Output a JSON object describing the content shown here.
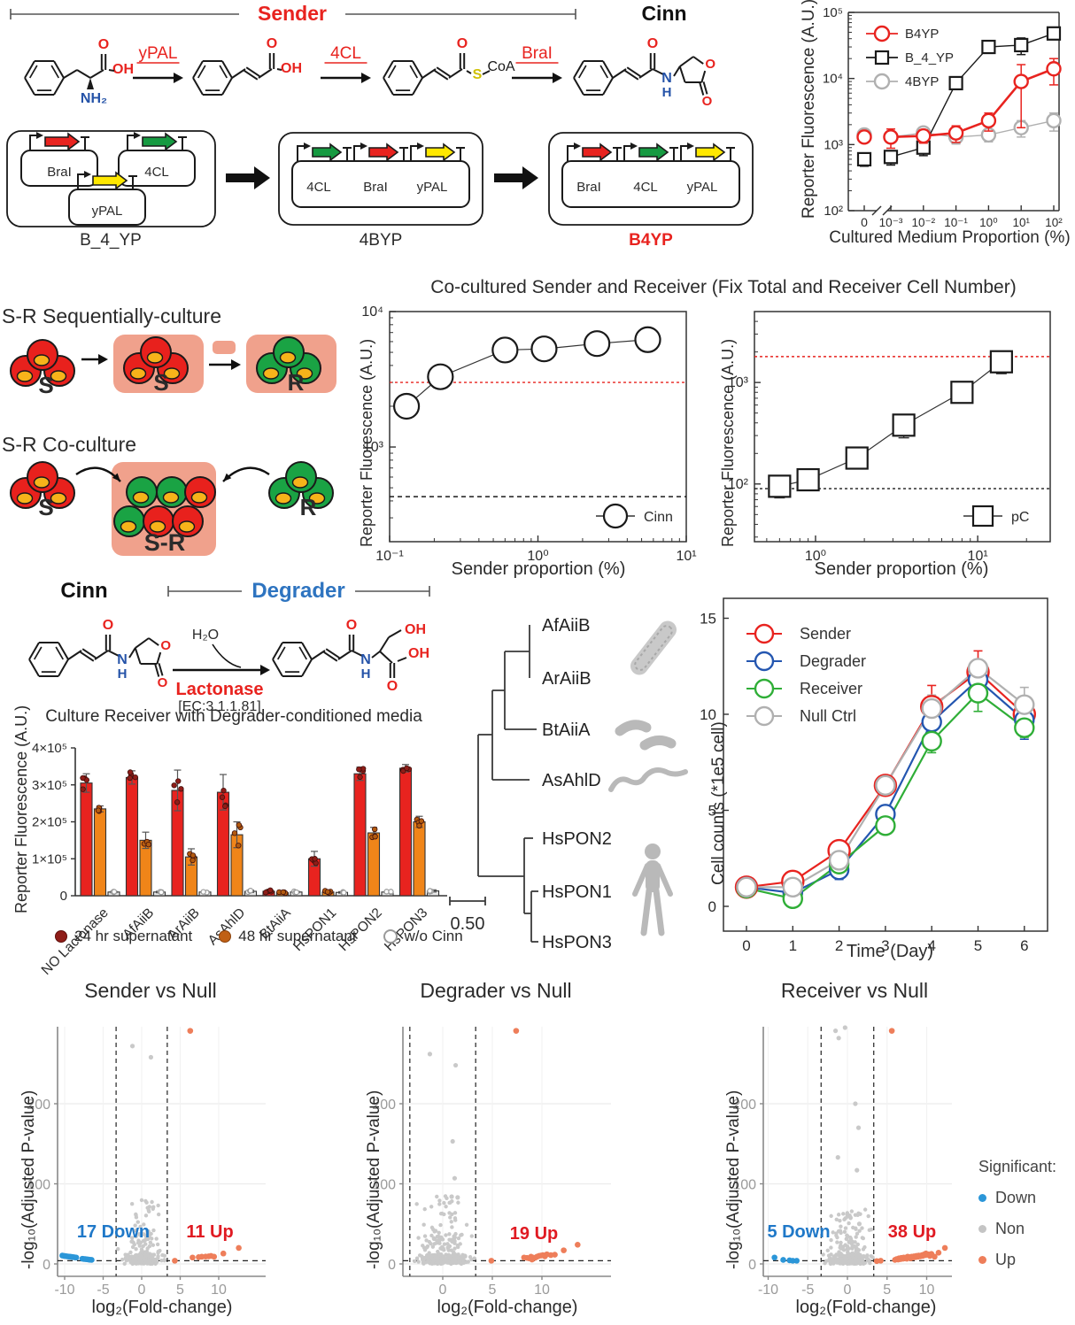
{
  "top_pathway": {
    "sender": "Sender",
    "cinn": "Cinn",
    "enzymes": [
      "yPAL",
      "4CL",
      "BraI"
    ],
    "atoms": {
      "o": "O",
      "oh": "OH",
      "nh2": "NH₂",
      "s": "S",
      "coa": "CoA",
      "n": "N",
      "h": "H"
    }
  },
  "plasmids": {
    "constructs": [
      {
        "name": "B_4_YP",
        "name_color": "#1a1a1a",
        "genes": [
          "BraI",
          "4CL",
          "yPAL"
        ],
        "gene_colors": [
          "#e8231f",
          "#169a41",
          "#ffe800"
        ],
        "layout": "separate"
      },
      {
        "name": "4BYP",
        "name_color": "#1a1a1a",
        "genes": [
          "4CL",
          "BraI",
          "yPAL"
        ],
        "gene_colors": [
          "#169a41",
          "#e8231f",
          "#ffe800"
        ],
        "layout": "operon"
      },
      {
        "name": "B4YP",
        "name_color": "#e8231f",
        "genes": [
          "BraI",
          "4CL",
          "yPAL"
        ],
        "gene_colors": [
          "#e8231f",
          "#169a41",
          "#ffe800"
        ],
        "layout": "operon"
      }
    ]
  },
  "cocultured_title": "Co-cultured Sender and Receiver (Fix Total and Receiver Cell Number)",
  "sr_diagrams": {
    "seq_title": "S-R Sequentially-culture",
    "co_title": "S-R Co-culture",
    "s_label": "S",
    "r_label": "R",
    "sr_label": "S-R",
    "cell_red": "#e8211d",
    "cell_green": "#1aa344",
    "nucleus": "#f7b31a",
    "box_pink": "#f0a18c"
  },
  "degrader_chem": {
    "cinn": "Cinn",
    "degrader": "Degrader",
    "degrader_color": "#2e74c0",
    "h2o": "H₂O",
    "lactonase": "Lactonase",
    "ec": "[EC:3.1.1.81]"
  },
  "tree": {
    "taxa": [
      "AfAiiB",
      "ArAiiB",
      "BtAiiA",
      "AsAhlD",
      "HsPON2",
      "HsPON1",
      "HsPON3"
    ],
    "scale_label": "0.50",
    "icons": [
      "rod-bacterium",
      "curved-bacteria",
      "nematode-worm",
      "human-silhouette"
    ]
  },
  "volcano_legend": {
    "title": "Significant:",
    "items": [
      {
        "label": "Down",
        "color": "#2b96d8"
      },
      {
        "label": "Non",
        "color": "#c4c4c4"
      },
      {
        "label": "Up",
        "color": "#ee7e5a"
      }
    ]
  },
  "chart_data": [
    {
      "id": "medium",
      "type": "scatter",
      "xlabel": "Cultured Medium Proportion (%)",
      "ylabel": "Reporter Fluorescence (A.U.)",
      "ylim": [
        100,
        100000
      ],
      "yticks": [
        [
          100,
          "10²"
        ],
        [
          1000,
          "10³"
        ],
        [
          10000,
          "10⁴"
        ],
        [
          100000,
          "10⁵"
        ]
      ],
      "zero_label": "0",
      "xticks_log": [
        [
          0.001,
          "10⁻³"
        ],
        [
          0.01,
          "10⁻²"
        ],
        [
          0.1,
          "10⁻¹"
        ],
        [
          1,
          "10⁰"
        ],
        [
          10,
          "10¹"
        ],
        [
          100,
          "10²"
        ]
      ],
      "series": [
        {
          "name": "4BYP",
          "color": "#b0b0b0",
          "marker": "circle",
          "x": [
            0,
            0.001,
            0.01,
            0.1,
            1,
            10,
            100
          ],
          "y": [
            1400,
            1300,
            1500,
            1300,
            1400,
            1800,
            2300
          ],
          "err": [
            150,
            150,
            250,
            280,
            300,
            500,
            700
          ]
        },
        {
          "name": "B_4_YP",
          "color": "#1a1a1a",
          "marker": "square",
          "x": [
            0,
            0.001,
            0.01,
            0.1,
            1,
            10,
            100
          ],
          "y": [
            600,
            650,
            900,
            8500,
            30000,
            32000,
            48000
          ],
          "err": [
            130,
            160,
            220,
            1500,
            6000,
            9000,
            6000
          ]
        },
        {
          "name": "B4YP",
          "color": "#e8231f",
          "marker": "circle",
          "x": [
            0,
            0.001,
            0.01,
            0.1,
            1,
            10,
            100
          ],
          "y": [
            1300,
            1300,
            1350,
            1500,
            2300,
            9000,
            14000
          ],
          "err": [
            150,
            420,
            300,
            420,
            700,
            7200,
            6000
          ]
        }
      ],
      "legend_order": [
        "B4YP",
        "B_4_YP",
        "4BYP"
      ]
    },
    {
      "id": "cinn",
      "type": "scatter",
      "xlabel": "Sender proportion (%)",
      "ylabel": "Reporter Fluorescence (A.U.)",
      "xlim": [
        0.1,
        10
      ],
      "ylim": [
        200,
        10000
      ],
      "xticks": [
        [
          0.1,
          "10⁻¹"
        ],
        [
          1,
          "10⁰"
        ],
        [
          10,
          "10¹"
        ]
      ],
      "yticks": [
        [
          1000,
          "10³"
        ],
        [
          10000,
          "10⁴"
        ]
      ],
      "hlines": [
        {
          "y": 3000,
          "color": "#e8231f",
          "dash": "3,3"
        },
        {
          "y": 430,
          "color": "#1a1a1a",
          "dash": "5,4"
        }
      ],
      "series": [
        {
          "name": "Cinn",
          "color": "#1a1a1a",
          "marker": "circle",
          "x": [
            0.13,
            0.22,
            0.6,
            1.1,
            2.5,
            5.5
          ],
          "y": [
            2000,
            3300,
            5200,
            5300,
            5800,
            6200
          ],
          "err": [
            280,
            320,
            520,
            950,
            520,
            420
          ]
        }
      ]
    },
    {
      "id": "pc",
      "type": "scatter",
      "xlabel": "Sender proportion (%)",
      "ylabel": "Reporter Fluorescence (A.U.)",
      "xlim": [
        0.42,
        28
      ],
      "ylim": [
        27,
        5000
      ],
      "xticks": [
        [
          1,
          "10⁰"
        ],
        [
          10,
          "10¹"
        ]
      ],
      "yticks": [
        [
          100,
          "10²"
        ],
        [
          1000,
          "10³"
        ]
      ],
      "hlines": [
        {
          "y": 1800,
          "color": "#e8231f",
          "dash": "3,3"
        },
        {
          "y": 90,
          "color": "#1a1a1a",
          "dash": "3,3"
        }
      ],
      "series": [
        {
          "name": "pC",
          "color": "#1a1a1a",
          "marker": "square",
          "x": [
            0.6,
            0.9,
            1.8,
            3.5,
            8,
            14
          ],
          "y": [
            95,
            110,
            180,
            380,
            800,
            1600
          ],
          "err": [
            22,
            22,
            35,
            95,
            160,
            380
          ]
        }
      ]
    },
    {
      "id": "bars",
      "type": "bar",
      "title": "Culture Receiver with Degrader-conditioned media",
      "ylabel": "Reporter Fluorescence (A.U.)",
      "ylim": [
        0,
        400000
      ],
      "yticks": [
        [
          0,
          "0"
        ],
        [
          100000,
          "1×10⁵"
        ],
        [
          200000,
          "2×10⁵"
        ],
        [
          300000,
          "3×10⁵"
        ],
        [
          400000,
          "4×10⁵"
        ]
      ],
      "categories": [
        "NO Lactonase",
        "AfAiiB",
        "ArAiiB",
        "AsAhlD",
        "BtAiiA",
        "HsPON1",
        "HsPON2",
        "HsPON3"
      ],
      "series": [
        {
          "name": "24 hr supernatant",
          "color": "#e8231f",
          "dot": "#8f1d18",
          "values": [
            305000,
            320000,
            285000,
            280000,
            12000,
            100000,
            330000,
            345000
          ],
          "err": [
            25000,
            18000,
            55000,
            48000,
            4000,
            20000,
            18000,
            10000
          ]
        },
        {
          "name": "48 hr supernatant",
          "color": "#f08519",
          "dot": "#b35b10",
          "values": [
            235000,
            150000,
            105000,
            165000,
            8000,
            10000,
            170000,
            200000
          ],
          "err": [
            8000,
            22000,
            22000,
            35000,
            3000,
            4000,
            15000,
            15000
          ]
        },
        {
          "name": "w/o Cinn",
          "color": "#e8e8e8",
          "dot": "#9a9a9a",
          "values": [
            10000,
            10000,
            10000,
            12000,
            10000,
            9000,
            10000,
            13000
          ],
          "err": [
            2000,
            2000,
            2000,
            3000,
            2000,
            2000,
            2000,
            3000
          ]
        }
      ]
    },
    {
      "id": "cells",
      "type": "line",
      "xlabel": "Time (Day)",
      "ylabel": "Cell counts (*1e5 cell)",
      "xticks": [
        0,
        1,
        2,
        3,
        4,
        5,
        6
      ],
      "yticks": [
        0,
        5,
        10,
        15
      ],
      "series": [
        {
          "name": "Sender",
          "color": "#e8231f",
          "x": [
            0,
            1,
            2,
            3,
            4,
            5,
            6
          ],
          "y": [
            1.0,
            1.3,
            2.9,
            6.3,
            10.4,
            12.2,
            10.0
          ],
          "err": [
            0.15,
            0.3,
            0.5,
            0.5,
            1.1,
            1.1,
            0.45
          ]
        },
        {
          "name": "Degrader",
          "color": "#2456b0",
          "x": [
            0,
            1,
            2,
            3,
            4,
            5,
            6
          ],
          "y": [
            1.0,
            0.7,
            1.9,
            4.8,
            9.6,
            11.8,
            9.7
          ],
          "err": [
            0.1,
            0.4,
            0.5,
            0.3,
            0.5,
            0.9,
            1.0
          ]
        },
        {
          "name": "Receiver",
          "color": "#2fae37",
          "x": [
            0,
            1,
            2,
            3,
            4,
            5,
            6
          ],
          "y": [
            0.95,
            0.4,
            2.2,
            4.2,
            8.6,
            11.1,
            9.3
          ],
          "err": [
            0.1,
            0.25,
            0.3,
            0.35,
            0.6,
            0.95,
            0.5
          ]
        },
        {
          "name": "Null Ctrl",
          "color": "#b0b0b0",
          "x": [
            0,
            1,
            2,
            3,
            4,
            5,
            6
          ],
          "y": [
            1.0,
            1.0,
            2.4,
            6.3,
            10.3,
            12.4,
            10.5
          ],
          "err": [
            0.1,
            0.2,
            0.3,
            0.4,
            0.7,
            0.45,
            0.9
          ]
        }
      ]
    },
    {
      "id": "v1",
      "type": "volcano",
      "title": "Sender vs Null",
      "xlabel": "log₂(Fold-change)",
      "ylabel": "-log₁₀(Adjusted P-value)",
      "xticks": [
        -10,
        -5,
        0,
        5,
        10
      ],
      "yticks": [
        0,
        100,
        200
      ],
      "vlines": [
        -3.32,
        3.32
      ],
      "hline": 4,
      "down_label": "17 Down",
      "up_label": "11 Up",
      "down_color": "#1f78c8",
      "up_color": "#e01a22",
      "down_points": [
        [
          -10.3,
          10.5
        ],
        [
          -10.1,
          10
        ],
        [
          -9.9,
          9.8
        ],
        [
          -9.7,
          9.5
        ],
        [
          -9.5,
          9.2
        ],
        [
          -9.3,
          9
        ],
        [
          -9.1,
          8.8
        ],
        [
          -8.9,
          8.5
        ],
        [
          -8.7,
          8.2
        ],
        [
          -8.5,
          8
        ],
        [
          -7.7,
          6.5
        ],
        [
          -7.5,
          6.2
        ],
        [
          -7.3,
          6
        ],
        [
          -7.1,
          5.8
        ],
        [
          -6.9,
          5.5
        ],
        [
          -6.7,
          5.2
        ],
        [
          -6.5,
          5
        ]
      ],
      "up_points": [
        [
          4.3,
          4
        ],
        [
          6.6,
          8
        ],
        [
          7.4,
          8.5
        ],
        [
          7.8,
          9
        ],
        [
          8.3,
          9.2
        ],
        [
          8.7,
          9.5
        ],
        [
          9.0,
          10
        ],
        [
          9.4,
          9
        ],
        [
          10.6,
          13
        ],
        [
          12.6,
          20
        ],
        [
          6.3,
          291
        ]
      ],
      "gray_outliers": [
        [
          -1.2,
          272
        ],
        [
          1.2,
          258
        ]
      ],
      "cloud": {
        "n": 270,
        "seed": 13,
        "ymax": 80
      }
    },
    {
      "id": "v2",
      "type": "volcano",
      "title": "Degrader vs Null",
      "xlabel": "log₂(Fold-change)",
      "ylabel": "-log₁₀(Adjusted P-value)",
      "xticks": [
        0,
        5,
        10
      ],
      "yticks": [
        0,
        100,
        200
      ],
      "vlines": [
        -3.32,
        3.32
      ],
      "hline": 4,
      "down_label": "",
      "up_label": "19 Up",
      "down_color": "#1f78c8",
      "up_color": "#e01a22",
      "down_points": [],
      "up_points": [
        [
          4.9,
          4
        ],
        [
          7.4,
          291
        ],
        [
          8.2,
          8
        ],
        [
          8.5,
          7.5
        ],
        [
          8.7,
          7
        ],
        [
          8.9,
          9
        ],
        [
          9.1,
          8
        ],
        [
          9.3,
          7.5
        ],
        [
          9.5,
          9
        ],
        [
          9.7,
          10
        ],
        [
          9.9,
          10.5
        ],
        [
          10.1,
          11
        ],
        [
          10.3,
          9.5
        ],
        [
          10.5,
          12
        ],
        [
          10.9,
          11
        ],
        [
          11.3,
          11.5
        ],
        [
          12.2,
          17
        ],
        [
          13.6,
          24
        ],
        [
          9.0,
          5.5
        ]
      ],
      "gray_outliers": [
        [
          -1.3,
          262
        ],
        [
          1.3,
          248
        ],
        [
          1.0,
          153
        ],
        [
          1.2,
          107
        ],
        [
          0.9,
          84
        ],
        [
          1.5,
          83
        ]
      ],
      "cloud": {
        "n": 300,
        "seed": 29,
        "ymax": 85
      }
    },
    {
      "id": "v3",
      "type": "volcano",
      "title": "Receiver vs Null",
      "xlabel": "log₂(Fold-change)",
      "ylabel": "-log₁₀(Adjusted P-value)",
      "xticks": [
        -10,
        -5,
        0,
        5,
        10
      ],
      "yticks": [
        0,
        100,
        200
      ],
      "vlines": [
        -3.32,
        3.32
      ],
      "hline": 4,
      "down_label": "5 Down",
      "up_label": "38 Up",
      "down_color": "#1f78c8",
      "up_color": "#e01a22",
      "down_points": [
        [
          -9.2,
          8
        ],
        [
          -8.1,
          5
        ],
        [
          -7.3,
          4.5
        ],
        [
          -6.9,
          4
        ],
        [
          -6.4,
          4
        ]
      ],
      "up_points": [
        [
          3.7,
          3.5
        ],
        [
          4.2,
          4
        ],
        [
          5.6,
          291
        ],
        [
          6.0,
          5
        ],
        [
          6.2,
          6
        ],
        [
          6.4,
          5.5
        ],
        [
          6.5,
          7
        ],
        [
          6.7,
          6
        ],
        [
          6.8,
          7.5
        ],
        [
          7.0,
          6.5
        ],
        [
          7.1,
          8
        ],
        [
          7.2,
          7
        ],
        [
          7.4,
          8
        ],
        [
          7.5,
          6.5
        ],
        [
          7.6,
          9
        ],
        [
          7.8,
          7.5
        ],
        [
          7.9,
          8.5
        ],
        [
          8.0,
          7
        ],
        [
          8.1,
          9
        ],
        [
          8.3,
          8
        ],
        [
          8.4,
          9.5
        ],
        [
          8.6,
          8.5
        ],
        [
          8.7,
          10
        ],
        [
          8.9,
          9
        ],
        [
          9.0,
          10.5
        ],
        [
          9.2,
          9.5
        ],
        [
          9.4,
          11
        ],
        [
          9.5,
          10
        ],
        [
          9.7,
          12
        ],
        [
          9.8,
          11
        ],
        [
          9.9,
          13
        ],
        [
          10.0,
          11.5
        ],
        [
          10.2,
          12
        ],
        [
          10.4,
          10
        ],
        [
          10.6,
          12.5
        ],
        [
          11.0,
          9
        ],
        [
          11.5,
          14
        ],
        [
          12.3,
          20
        ]
      ],
      "gray_outliers": [
        [
          -1.5,
          291
        ],
        [
          -1.1,
          282
        ],
        [
          -0.3,
          295
        ],
        [
          1.0,
          200
        ],
        [
          1.4,
          170
        ],
        [
          -1.2,
          133
        ],
        [
          1.2,
          117
        ],
        [
          1.5,
          50
        ]
      ],
      "cloud": {
        "n": 330,
        "seed": 47,
        "ymax": 68
      }
    }
  ]
}
